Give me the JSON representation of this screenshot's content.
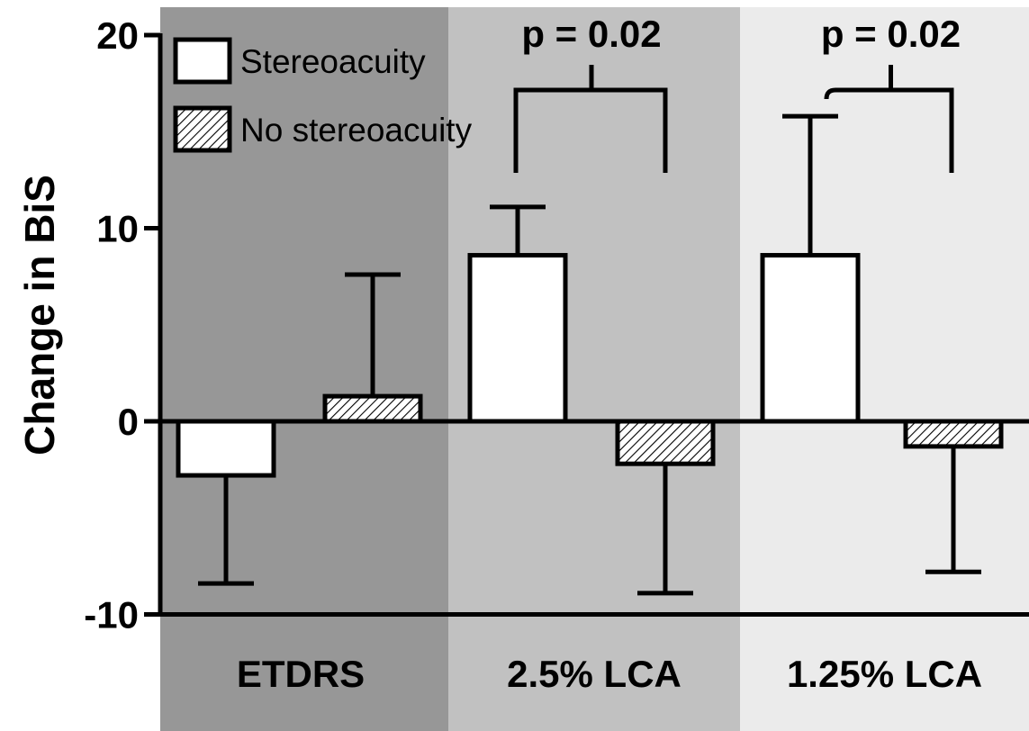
{
  "chart_data": {
    "type": "bar",
    "categories": [
      "ETDRS",
      "2.5% LCA",
      "1.25% LCA"
    ],
    "series": [
      {
        "name": "Stereoacuity",
        "pattern": "solid-white",
        "values": [
          -2.8,
          8.6,
          8.6
        ],
        "error_bars": [
          5.6,
          2.5,
          7.2
        ]
      },
      {
        "name": "No stereoacuity",
        "pattern": "hatched",
        "values": [
          1.3,
          -2.2,
          -1.3
        ],
        "error_bars": [
          6.3,
          6.7,
          6.5
        ]
      }
    ],
    "ylabel": "Change in BiS",
    "xlabel": "",
    "ylim": [
      -10,
      20
    ],
    "yticks": [
      20,
      10,
      0,
      -10
    ],
    "ytick_labels": [
      "20",
      "10",
      "0",
      "-10"
    ],
    "annotations": [
      {
        "text": "p = 0.02",
        "category": "2.5% LCA"
      },
      {
        "text": "p = 0.02",
        "category": "1.25% LCA"
      }
    ],
    "category_backgrounds": [
      "#979797",
      "#c1c1c1",
      "#ebebeb"
    ],
    "legend_position": "top-left",
    "grid": false
  }
}
